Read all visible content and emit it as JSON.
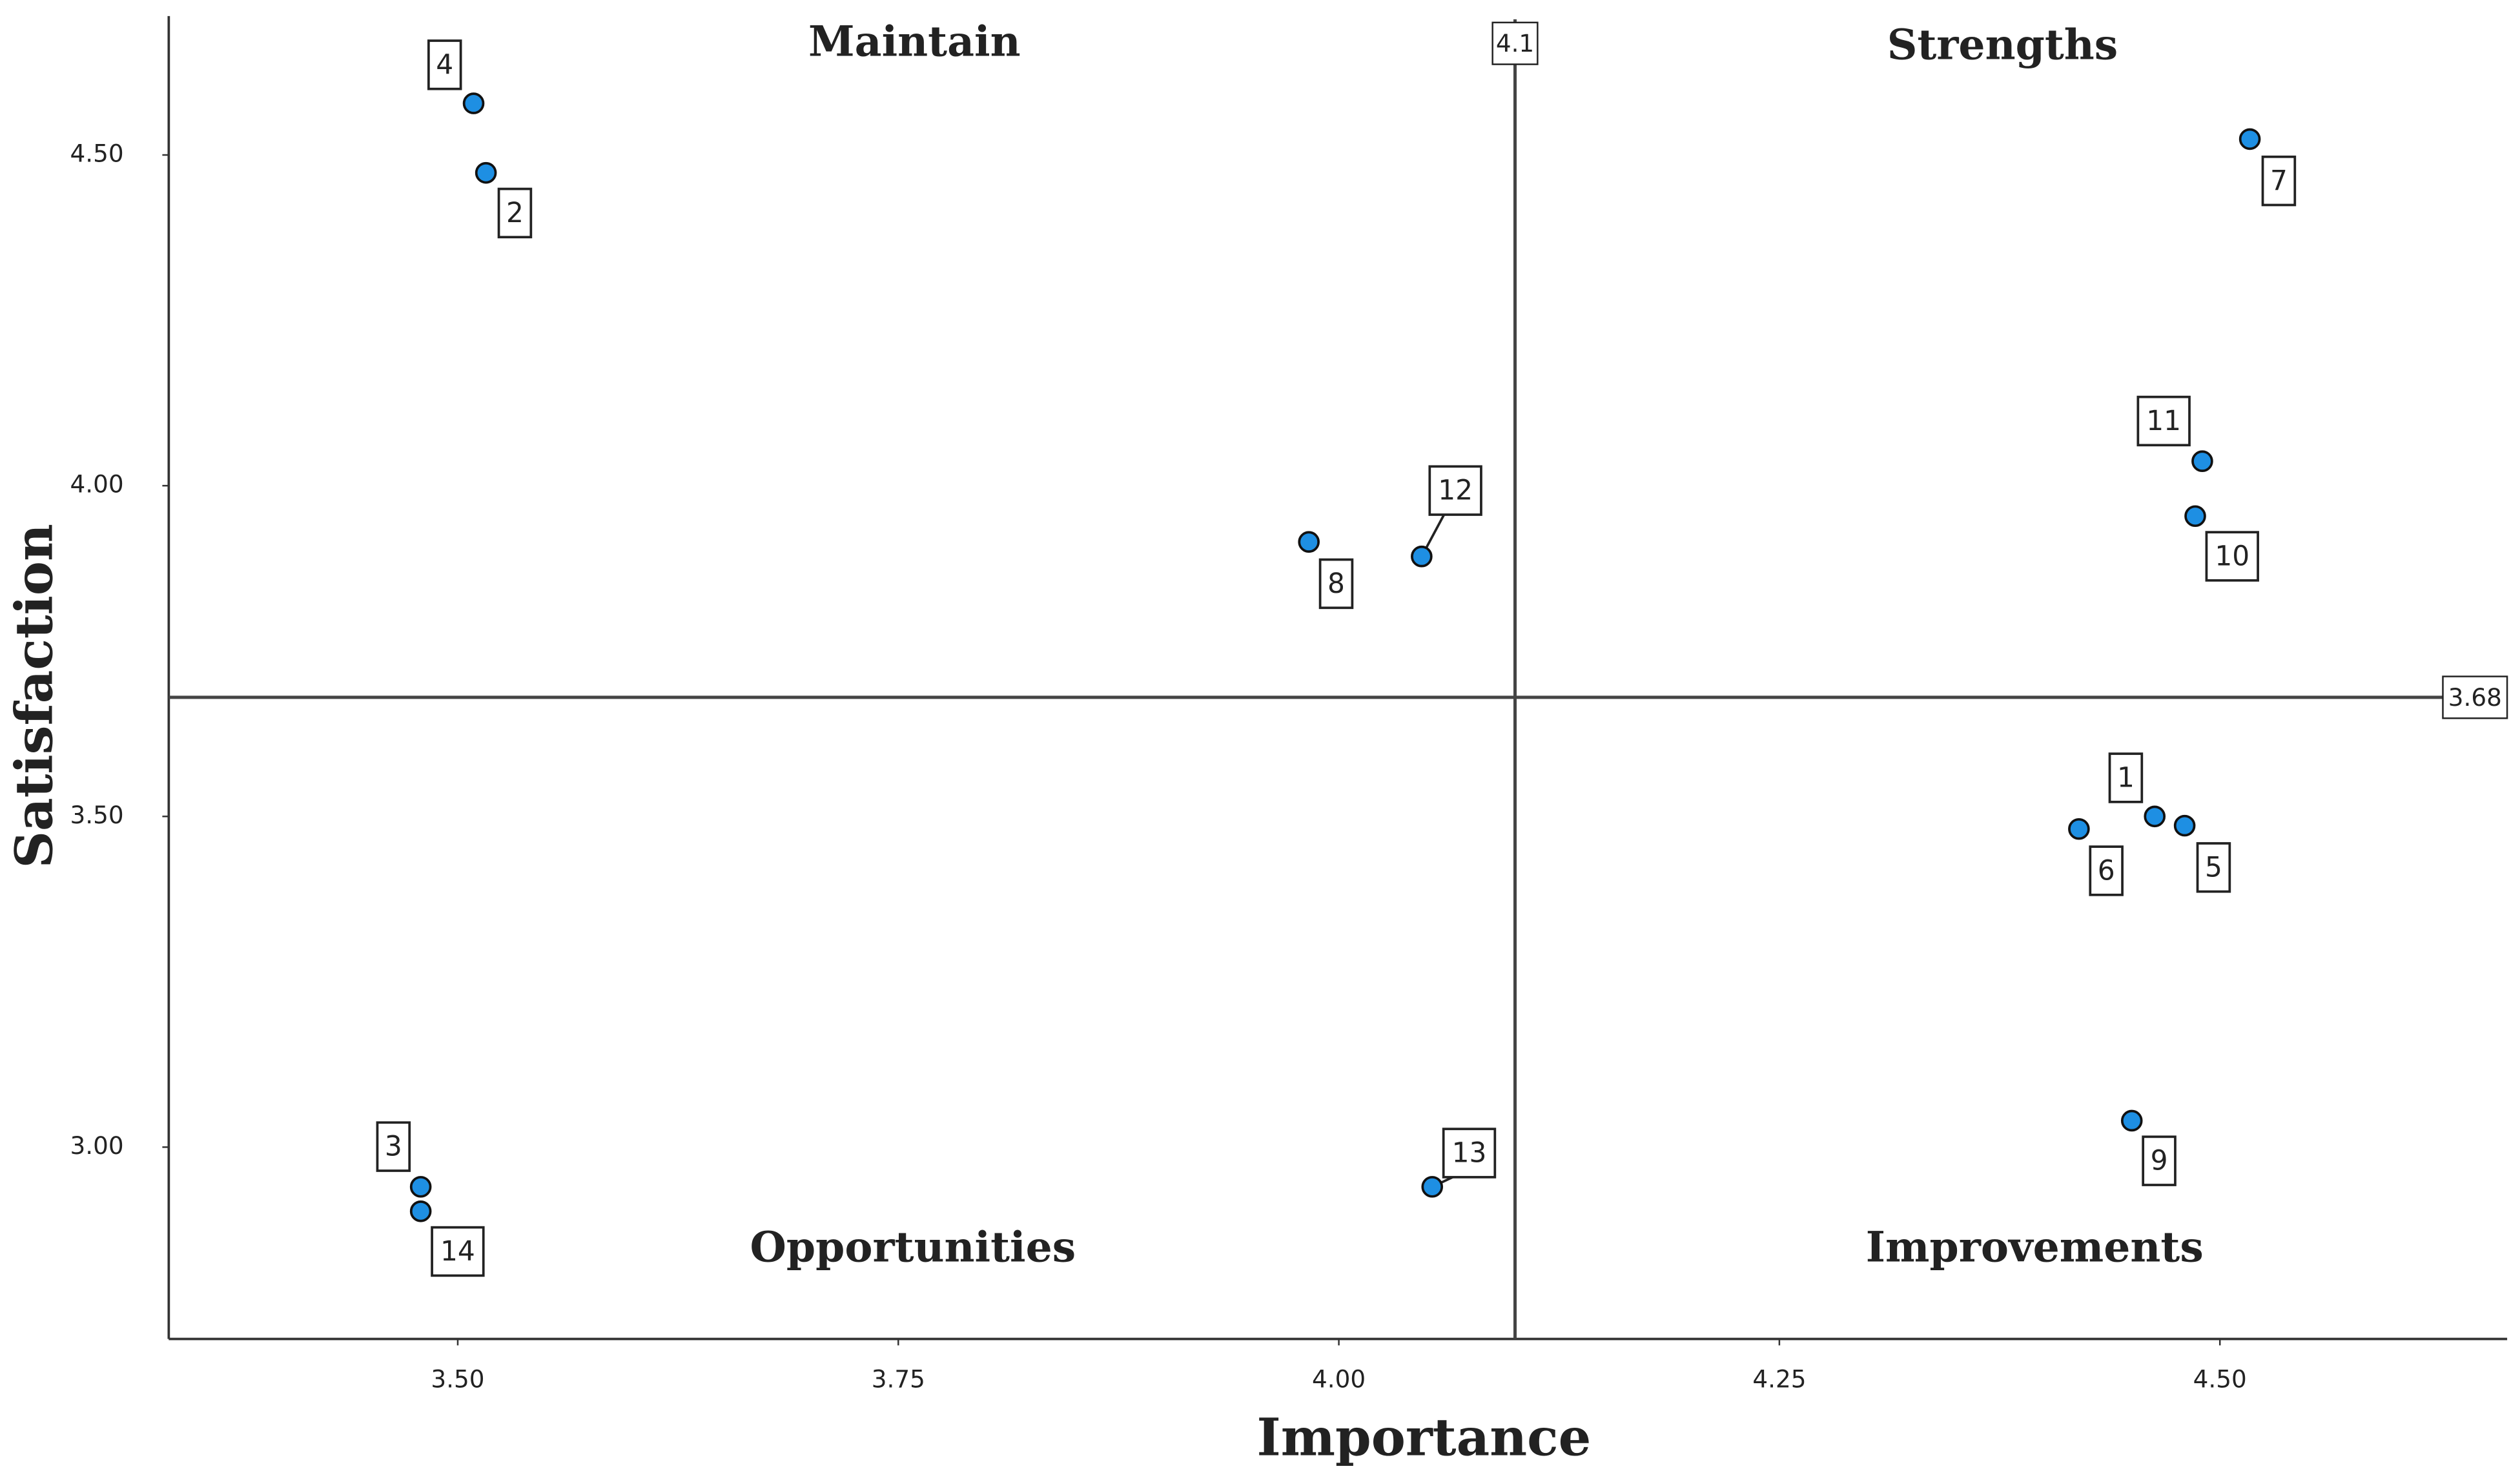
{
  "chart_data": {
    "type": "scatter",
    "x_label": "Importance",
    "y_label": "Satisfaction",
    "xlim": [
      3.336,
      4.663
    ],
    "ylim": [
      2.71,
      4.71
    ],
    "xticks": [
      {
        "value": 3.5,
        "label": "3.50"
      },
      {
        "value": 3.75,
        "label": "3.75"
      },
      {
        "value": 4.0,
        "label": "4.00"
      },
      {
        "value": 4.25,
        "label": "4.25"
      },
      {
        "value": 4.5,
        "label": "4.50"
      }
    ],
    "yticks": [
      {
        "value": 3.0,
        "label": "3.00"
      },
      {
        "value": 3.5,
        "label": "3.50"
      },
      {
        "value": 4.0,
        "label": "4.00"
      },
      {
        "value": 4.5,
        "label": "4.50"
      }
    ],
    "vline": 4.1,
    "hline": 3.68,
    "annotations": [
      "Maintain",
      "Strengths",
      "Opportunities",
      "Improvements"
    ],
    "color": "#1e8fe3",
    "labels": [
      "1",
      "2",
      "3",
      "4",
      "5",
      "6",
      "7",
      "8",
      "9",
      "10",
      "11",
      "12",
      "13",
      "14"
    ],
    "x": [
      4.463,
      3.516,
      3.479,
      3.509,
      4.48,
      4.42,
      4.517,
      3.983,
      4.45,
      4.486,
      4.49,
      4.047,
      4.053,
      3.479
    ],
    "y": [
      3.5,
      4.473,
      2.94,
      4.578,
      3.486,
      3.481,
      4.524,
      3.915,
      3.04,
      3.954,
      4.037,
      3.893,
      2.94,
      2.903
    ]
  }
}
